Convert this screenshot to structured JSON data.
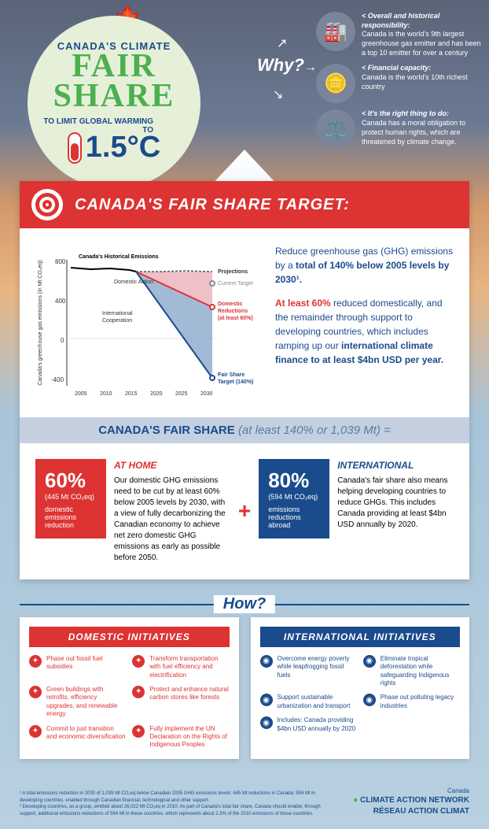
{
  "header": {
    "title_top": "CANADA'S CLIMATE",
    "title_main": "FAIR SHARE",
    "title_sub": "TO LIMIT GLOBAL WARMING TO",
    "temp": "1.5°C"
  },
  "why": {
    "label": "Why?",
    "items": [
      {
        "icon": "factory",
        "title": "Overall and historical responsibility:",
        "text": "Canada is the world's 9th largest greenhouse gas emitter and has been a top 10 emitter for over a century"
      },
      {
        "icon": "coins",
        "title": "Financial capacity:",
        "text": "Canada is the world's 10th richest country"
      },
      {
        "icon": "scales",
        "title": "It's the right thing to do:",
        "text": "Canada has a moral obligation to protect human rights, which are threatened by climate change."
      }
    ]
  },
  "target": {
    "title": "CANADA'S FAIR SHARE TARGET:",
    "text_line1": "Reduce greenhouse gas (GHG) emissions by a ",
    "text_bold1": "total of 140% below 2005 levels by 2030¹.",
    "text_line2_bold": "At least 60%",
    "text_line2": " reduced domestically, and the remainder through support to developing countries, which includes ramping up our ",
    "text_line2_bold2": "international climate finance to at least $4bn USD per year."
  },
  "chart": {
    "ylabel": "Canada's greenhouse gas emissions (in Mt CO₂eq)",
    "yticks": [
      -400,
      0,
      400,
      800
    ],
    "xticks": [
      2005,
      2010,
      2015,
      2020,
      2025,
      2030
    ],
    "labels": {
      "historical": "Canada's Historical Emissions",
      "projections": "Projections",
      "domestic": "Domestic Action",
      "international": "International Cooperation",
      "current": "Current Target",
      "dom_red": "Domestic Reductions (at least 60%)",
      "fair": "Fair Share Target (140%)"
    },
    "colors": {
      "historical": "#000000",
      "projections": "#555555",
      "domestic_fill": "#e8a5b0",
      "intl_fill": "#7a9cc4",
      "red_line": "#d33333",
      "blue_line": "#1a4b8c"
    }
  },
  "share": {
    "header_bold": "CANADA'S FAIR SHARE",
    "header_light": "(at least 140% or 1,039 Mt) =",
    "home": {
      "pct": "60%",
      "sub": "(445 Mt CO₂eq)",
      "label": "domestic emissions reduction",
      "title": "AT HOME",
      "text": "Our domestic GHG emissions need to be cut by at least 60% below 2005 levels by 2030, with a view of fully decarbonizing the Canadian economy to achieve net zero domestic GHG emissions as early as possible before 2050."
    },
    "intl": {
      "pct": "80%",
      "sub": "(594 Mt CO₂eq)",
      "label": "emissions reductions abroad",
      "title": "INTERNATIONAL",
      "text": "Canada's fair share also means helping developing countries to reduce GHGs. This includes Canada providing at least $4bn USD annually by 2020."
    }
  },
  "how": {
    "label": "How?",
    "domestic": {
      "title": "DOMESTIC INITIATIVES",
      "items": [
        "Phase out fossil fuel subsidies",
        "Transform transportation with fuel efficiency and electrification",
        "Green buildings with retrofits, efficiency upgrades, and renewable energy",
        "Protect and enhance natural carbon stores like forests",
        "Commit to just transition and economic diversification",
        "Fully implement the UN Declaration on the Rights of Indigenous Peoples"
      ]
    },
    "international": {
      "title": "INTERNATIONAL INITIATIVES",
      "items": [
        "Overcome energy poverty while leapfrogging fossil fuels",
        "Eliminate tropical deforestation while safeguarding Indigenous rights",
        "Support sustainable urbanization and transport",
        "Phase out polluting legacy industries",
        "Includes: Canada providing $4bn USD annually by 2020"
      ]
    }
  },
  "footer": {
    "note1": "¹ A total emissions reduction in 2030 of 1,039 Mt CO₂eq below Canadian 2005 GHG emissions levels: 445 Mt reductions in Canada; 594 Mt in developing countries, enabled through Canadian financial, technological and other support.",
    "note2": "² Developing countries, as a group, emitted about 26,022 Mt CO₂eq in 2010. As part of Canada's total fair share, Canada should enable, through support, additional emissions reductions of 594 Mt in these countries, which represents about 2.3% of the 2010 emissions of these countries.",
    "logo1": "CLIMATE ACTION NETWORK",
    "logo2": "RÉSEAU ACTION CLIMAT",
    "logo_country": "Canada"
  }
}
